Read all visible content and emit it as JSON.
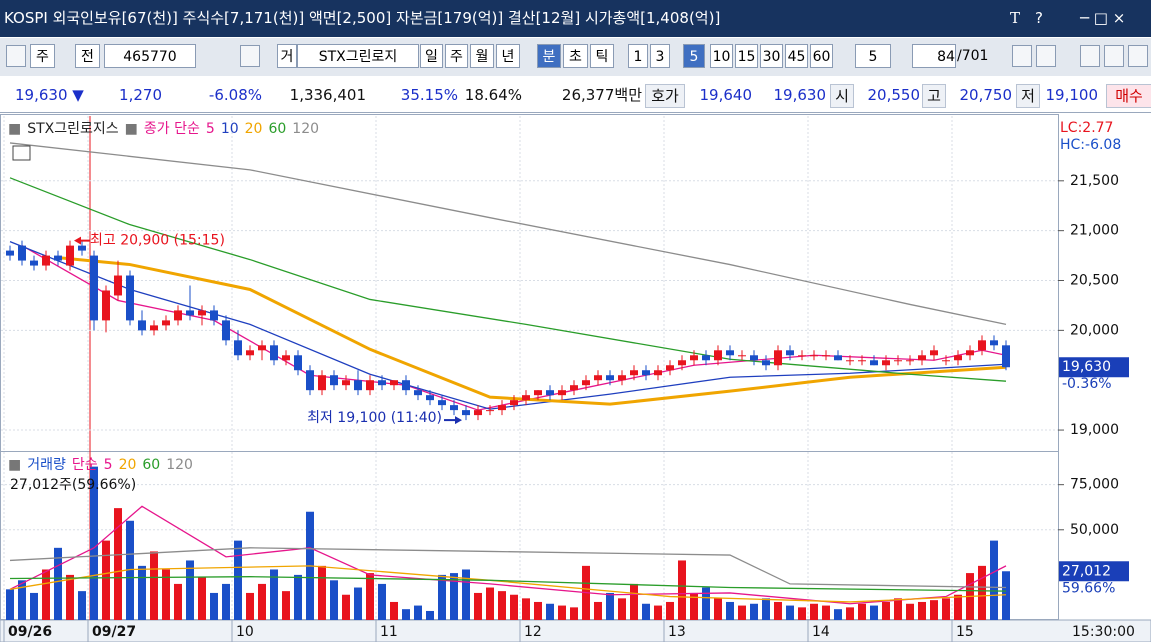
{
  "header": {
    "title": "KOSPI 외국인보유[67(천)] 주식수[7,171(천)] 액면[2,500] 자본금[179(억)] 결산[12월] 시가총액[1,408(억)]",
    "tools": [
      "T",
      "?"
    ]
  },
  "toolbar": [
    {
      "text": "주"
    },
    {
      "text": "전"
    },
    {
      "text": "465770"
    },
    {
      "text": "거"
    },
    {
      "text": "STX그린로지"
    },
    {
      "text": "일"
    },
    {
      "text": "주"
    },
    {
      "text": "월"
    },
    {
      "text": "년"
    },
    {
      "text": "분",
      "active": true
    },
    {
      "text": "초"
    },
    {
      "text": "틱"
    },
    {
      "text": "1"
    },
    {
      "text": "3"
    },
    {
      "text": "5",
      "active": true
    },
    {
      "text": "10"
    },
    {
      "text": "15"
    },
    {
      "text": "30"
    },
    {
      "text": "45"
    },
    {
      "text": "60"
    },
    {
      "text": "5"
    },
    {
      "text": "84"
    },
    {
      "text": "/701"
    }
  ],
  "quote": [
    {
      "text": "19,630 ▼",
      "color": "#1b2fc9"
    },
    {
      "text": "1,270",
      "color": "#1b2fc9"
    },
    {
      "text": "-6.08%",
      "color": "#1b2fc9"
    },
    {
      "text": "1,336,401",
      "color": "#111"
    },
    {
      "text": "35.15%",
      "color": "#1b2fc9"
    },
    {
      "text": "18.64%",
      "color": "#111"
    },
    {
      "text": "26,377백만",
      "color": "#111"
    },
    {
      "text": "호가",
      "color": "#111"
    },
    {
      "text": "19,640",
      "color": "#1b2fc9"
    },
    {
      "text": "19,630",
      "color": "#1b2fc9"
    },
    {
      "text": "시",
      "color": "#111"
    },
    {
      "text": "20,550",
      "color": "#1b2fc9"
    },
    {
      "text": "고",
      "color": "#111"
    },
    {
      "text": "20,750",
      "color": "#1b2fc9"
    },
    {
      "text": "저",
      "color": "#111"
    },
    {
      "text": "19,100",
      "color": "#1b2fc9"
    },
    {
      "text": "매수",
      "color": "#d00000"
    }
  ],
  "chart_data": [
    {
      "type": "candlestick",
      "name": "STX그린로지스",
      "method": "종가 단순",
      "lc": "LC:2.77",
      "hc": "HC:-6.08",
      "up_color": "#e8141e",
      "down_color": "#1a4fc8",
      "ylim": [
        18800,
        22150
      ],
      "yticks": [
        {
          "value": 19000,
          "label": "19,000"
        },
        {
          "value": 20000,
          "label": "20,000"
        },
        {
          "value": 20500,
          "label": "20,500"
        },
        {
          "value": 21000,
          "label": "21,000"
        },
        {
          "value": 21500,
          "label": "21,500"
        }
      ],
      "last": {
        "label": "19,630",
        "change": "-0.36%"
      },
      "xlabels": [
        {
          "index": 0,
          "label": "09/26"
        },
        {
          "index": 7,
          "label": "09/27",
          "separator": true
        },
        {
          "index": 19,
          "label": "10"
        },
        {
          "index": 31,
          "label": "11"
        },
        {
          "index": 43,
          "label": "12"
        },
        {
          "index": 55,
          "label": "13"
        },
        {
          "index": 67,
          "label": "14"
        },
        {
          "index": 79,
          "label": "15"
        }
      ],
      "time": "15:30:00",
      "annotations": [
        {
          "text": "최고 20,900 (15:15)",
          "index": 5,
          "at": "high",
          "color": "#e8141e"
        },
        {
          "text": "최저 19,100 (11:40)",
          "index": 38,
          "at": "low",
          "color": "#1a2fb0"
        }
      ],
      "candles": [
        [
          20800,
          20850,
          20700,
          20750
        ],
        [
          20850,
          20900,
          20650,
          20700
        ],
        [
          20700,
          20750,
          20600,
          20650
        ],
        [
          20650,
          20800,
          20600,
          20750
        ],
        [
          20750,
          20800,
          20650,
          20700
        ],
        [
          20650,
          20900,
          20600,
          20850
        ],
        [
          20850,
          20900,
          20750,
          20800
        ],
        [
          20750,
          20800,
          20000,
          20100
        ],
        [
          20100,
          20450,
          19980,
          20400
        ],
        [
          20350,
          20700,
          20300,
          20550
        ],
        [
          20550,
          20600,
          20050,
          20100
        ],
        [
          20100,
          20200,
          19950,
          20000
        ],
        [
          20000,
          20100,
          19950,
          20050
        ],
        [
          20050,
          20150,
          20000,
          20100
        ],
        [
          20100,
          20250,
          20050,
          20200
        ],
        [
          20200,
          20450,
          20100,
          20150
        ],
        [
          20150,
          20250,
          20050,
          20200
        ],
        [
          20200,
          20250,
          20050,
          20100
        ],
        [
          20100,
          20150,
          19850,
          19900
        ],
        [
          19900,
          20000,
          19700,
          19750
        ],
        [
          19750,
          19850,
          19700,
          19800
        ],
        [
          19800,
          19900,
          19700,
          19850
        ],
        [
          19850,
          19900,
          19650,
          19700
        ],
        [
          19700,
          19800,
          19650,
          19750
        ],
        [
          19750,
          19800,
          19550,
          19600
        ],
        [
          19600,
          19650,
          19350,
          19400
        ],
        [
          19400,
          19600,
          19350,
          19550
        ],
        [
          19550,
          19600,
          19400,
          19450
        ],
        [
          19450,
          19550,
          19400,
          19500
        ],
        [
          19500,
          19600,
          19350,
          19400
        ],
        [
          19400,
          19550,
          19350,
          19500
        ],
        [
          19500,
          19550,
          19400,
          19450
        ],
        [
          19450,
          19500,
          19400,
          19500
        ],
        [
          19500,
          19550,
          19350,
          19400
        ],
        [
          19400,
          19450,
          19300,
          19350
        ],
        [
          19350,
          19400,
          19250,
          19300
        ],
        [
          19300,
          19350,
          19200,
          19250
        ],
        [
          19250,
          19300,
          19150,
          19200
        ],
        [
          19200,
          19250,
          19100,
          19150
        ],
        [
          19150,
          19250,
          19100,
          19200
        ],
        [
          19200,
          19250,
          19150,
          19200
        ],
        [
          19200,
          19300,
          19150,
          19250
        ],
        [
          19250,
          19350,
          19200,
          19300
        ],
        [
          19300,
          19400,
          19250,
          19350
        ],
        [
          19350,
          19400,
          19300,
          19400
        ],
        [
          19400,
          19450,
          19300,
          19350
        ],
        [
          19350,
          19450,
          19300,
          19400
        ],
        [
          19400,
          19500,
          19350,
          19450
        ],
        [
          19450,
          19550,
          19400,
          19500
        ],
        [
          19500,
          19600,
          19450,
          19550
        ],
        [
          19550,
          19600,
          19450,
          19500
        ],
        [
          19500,
          19600,
          19450,
          19550
        ],
        [
          19550,
          19650,
          19500,
          19600
        ],
        [
          19600,
          19650,
          19500,
          19550
        ],
        [
          19550,
          19650,
          19500,
          19600
        ],
        [
          19600,
          19700,
          19550,
          19650
        ],
        [
          19650,
          19750,
          19600,
          19700
        ],
        [
          19700,
          19800,
          19650,
          19750
        ],
        [
          19750,
          19800,
          19650,
          19700
        ],
        [
          19700,
          19850,
          19650,
          19800
        ],
        [
          19800,
          19850,
          19700,
          19750
        ],
        [
          19750,
          19800,
          19700,
          19750
        ],
        [
          19750,
          19800,
          19650,
          19700
        ],
        [
          19700,
          19750,
          19600,
          19650
        ],
        [
          19650,
          19850,
          19600,
          19800
        ],
        [
          19800,
          19850,
          19700,
          19750
        ],
        [
          19750,
          19800,
          19700,
          19750
        ],
        [
          19750,
          19800,
          19700,
          19750
        ],
        [
          19750,
          19800,
          19700,
          19750
        ],
        [
          19750,
          19800,
          19700,
          19700
        ],
        [
          19700,
          19750,
          19650,
          19700
        ],
        [
          19700,
          19750,
          19650,
          19700
        ],
        [
          19700,
          19750,
          19650,
          19650
        ],
        [
          19650,
          19750,
          19600,
          19700
        ],
        [
          19700,
          19750,
          19650,
          19700
        ],
        [
          19700,
          19750,
          19650,
          19700
        ],
        [
          19700,
          19800,
          19650,
          19750
        ],
        [
          19750,
          19850,
          19700,
          19800
        ],
        [
          19700,
          19750,
          19650,
          19700
        ],
        [
          19700,
          19800,
          19650,
          19750
        ],
        [
          19750,
          19850,
          19700,
          19800
        ],
        [
          19800,
          19950,
          19750,
          19900
        ],
        [
          19900,
          19950,
          19800,
          19850
        ],
        [
          19850,
          19900,
          19600,
          19630
        ]
      ],
      "series": [
        {
          "name": "5",
          "color": "#e6168c",
          "x": [
            1,
            9,
            17,
            25,
            33,
            39,
            47,
            57,
            67,
            77,
            81,
            83
          ],
          "values": [
            20850,
            20300,
            20100,
            19550,
            19450,
            19200,
            19400,
            19650,
            19750,
            19700,
            19800,
            19750
          ]
        },
        {
          "name": "10",
          "color": "#1f3fbf",
          "x": [
            0,
            10,
            20,
            30,
            40,
            50,
            60,
            70,
            83
          ],
          "values": [
            20890,
            20410,
            20060,
            19560,
            19210,
            19360,
            19530,
            19570,
            19660
          ]
        },
        {
          "name": "20",
          "color": "#f0a500",
          "x": [
            4,
            10,
            20,
            30,
            40,
            50,
            60,
            70,
            83
          ],
          "values": [
            20730,
            20660,
            20410,
            19810,
            19330,
            19260,
            19390,
            19530,
            19630
          ]
        },
        {
          "name": "60",
          "color": "#2a9d2a",
          "x": [
            0,
            10,
            20,
            30,
            43,
            60,
            75,
            83
          ],
          "values": [
            21530,
            21060,
            20710,
            20310,
            20060,
            19710,
            19560,
            19490
          ]
        },
        {
          "name": "120",
          "color": "#8c8c8c",
          "x": [
            0,
            20,
            40,
            60,
            75,
            83
          ],
          "values": [
            21880,
            21610,
            21130,
            20660,
            20260,
            20060
          ]
        }
      ]
    },
    {
      "type": "bar",
      "name": "거래량",
      "method": "단순",
      "info": "27,012주(59.66%)",
      "ylim": [
        0,
        92000
      ],
      "yticks": [
        {
          "value": 50000,
          "label": "50,000"
        },
        {
          "value": 75000,
          "label": "75,000"
        }
      ],
      "last": {
        "label": "27,012",
        "change": "59.66%"
      },
      "values": [
        17000,
        22000,
        15000,
        28000,
        40000,
        25000,
        16000,
        85000,
        44000,
        62000,
        55000,
        30000,
        38000,
        28000,
        20000,
        33000,
        24000,
        15000,
        20000,
        44000,
        15000,
        20000,
        28000,
        16000,
        25000,
        60000,
        30000,
        22000,
        14000,
        18000,
        26000,
        20000,
        10000,
        6000,
        8000,
        5000,
        25000,
        26000,
        28000,
        15000,
        18000,
        16000,
        14000,
        12000,
        10000,
        9000,
        8000,
        7000,
        30000,
        10000,
        15000,
        12000,
        20000,
        9000,
        8000,
        10000,
        33000,
        15000,
        18000,
        12000,
        10000,
        8000,
        9000,
        12000,
        10000,
        8000,
        7000,
        9000,
        8000,
        6000,
        7000,
        9000,
        8000,
        10000,
        12000,
        9000,
        10000,
        11000,
        12000,
        14000,
        26000,
        30000,
        44000,
        27012
      ],
      "series": [
        {
          "name": "5",
          "color": "#e6168c",
          "x": [
            0,
            7,
            11,
            18,
            25,
            30,
            40,
            50,
            60,
            70,
            78,
            83
          ],
          "values": [
            17000,
            40000,
            63000,
            35000,
            40000,
            25000,
            20000,
            14000,
            15000,
            9000,
            13000,
            30000
          ]
        },
        {
          "name": "20",
          "color": "#f0a500",
          "x": [
            0,
            10,
            25,
            40,
            55,
            70,
            83
          ],
          "values": [
            17000,
            28000,
            30000,
            22000,
            13000,
            10000,
            14000
          ]
        },
        {
          "name": "60",
          "color": "#2a9d2a",
          "x": [
            0,
            20,
            40,
            60,
            83
          ],
          "values": [
            23000,
            24000,
            22000,
            18000,
            16000
          ]
        },
        {
          "name": "120",
          "color": "#8c8c8c",
          "x": [
            0,
            20,
            40,
            60,
            65,
            83
          ],
          "values": [
            33000,
            40000,
            38000,
            36000,
            20000,
            18000
          ]
        }
      ]
    }
  ]
}
